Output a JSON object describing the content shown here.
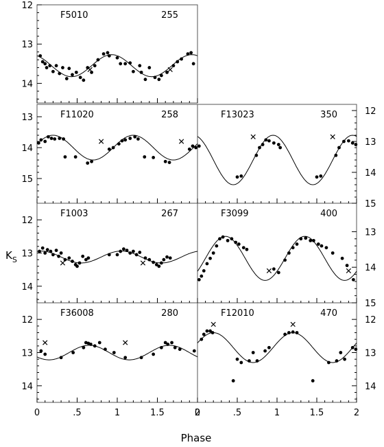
{
  "chart_data": {
    "type": "scatter",
    "xlabel": "Phase",
    "ylabel": "K",
    "ylabel_sub": "S",
    "panels": [
      {
        "star": "F5010",
        "period": "255",
        "xlim": [
          0,
          2
        ],
        "ylim": [
          14.5,
          12.0
        ],
        "yticks": [
          12,
          13,
          14
        ],
        "curve": {
          "mean": 13.55,
          "amp": 0.28,
          "peak_phase": 0.93
        },
        "points": [
          [
            0.04,
            13.3
          ],
          [
            0.07,
            13.45
          ],
          [
            0.1,
            13.5
          ],
          [
            0.12,
            13.6
          ],
          [
            0.16,
            13.55
          ],
          [
            0.2,
            13.7
          ],
          [
            0.24,
            13.55
          ],
          [
            0.28,
            13.75
          ],
          [
            0.32,
            13.6
          ],
          [
            0.37,
            13.88
          ],
          [
            0.4,
            13.62
          ],
          [
            0.44,
            13.78
          ],
          [
            0.49,
            13.72
          ],
          [
            0.54,
            13.85
          ],
          [
            0.58,
            13.92
          ],
          [
            0.63,
            13.6
          ],
          [
            0.68,
            13.72
          ],
          [
            0.72,
            13.55
          ],
          [
            0.76,
            13.4
          ],
          [
            0.83,
            13.25
          ],
          [
            0.88,
            13.22
          ],
          [
            0.9,
            13.3
          ],
          [
            1.0,
            13.35
          ],
          [
            1.04,
            13.5
          ],
          [
            1.1,
            13.5
          ],
          [
            1.16,
            13.48
          ],
          [
            1.2,
            13.7
          ],
          [
            1.28,
            13.55
          ],
          [
            1.3,
            13.72
          ],
          [
            1.35,
            13.9
          ],
          [
            1.4,
            13.6
          ],
          [
            1.47,
            13.85
          ],
          [
            1.52,
            13.9
          ],
          [
            1.55,
            13.8
          ],
          [
            1.62,
            13.72
          ],
          [
            1.7,
            13.55
          ],
          [
            1.75,
            13.45
          ],
          [
            1.8,
            13.38
          ],
          [
            1.88,
            13.25
          ],
          [
            1.92,
            13.22
          ],
          [
            1.95,
            13.5
          ]
        ],
        "crosses": [
          [
            0.66,
            13.65
          ],
          [
            1.66,
            13.65
          ]
        ]
      },
      {
        "star": "F11020",
        "period": "258",
        "xlim": [
          0,
          2
        ],
        "ylim": [
          15.8,
          12.6
        ],
        "yticks": [
          13,
          14,
          15
        ],
        "curve": {
          "mean": 14.0,
          "amp": 0.4,
          "peak_phase": 0.2
        },
        "points": [
          [
            0.02,
            13.85
          ],
          [
            0.05,
            13.75
          ],
          [
            0.1,
            13.8
          ],
          [
            0.14,
            13.65
          ],
          [
            0.18,
            13.7
          ],
          [
            0.22,
            13.72
          ],
          [
            0.28,
            13.7
          ],
          [
            0.33,
            13.72
          ],
          [
            0.35,
            14.3
          ],
          [
            0.48,
            14.3
          ],
          [
            0.63,
            14.5
          ],
          [
            0.68,
            14.45
          ],
          [
            0.9,
            14.05
          ],
          [
            0.95,
            14.0
          ],
          [
            1.02,
            13.88
          ],
          [
            1.06,
            13.78
          ],
          [
            1.1,
            13.75
          ],
          [
            1.16,
            13.7
          ],
          [
            1.22,
            13.65
          ],
          [
            1.26,
            13.72
          ],
          [
            1.34,
            14.3
          ],
          [
            1.45,
            14.32
          ],
          [
            1.6,
            14.45
          ],
          [
            1.65,
            14.48
          ],
          [
            1.9,
            14.05
          ],
          [
            1.94,
            13.95
          ],
          [
            1.98,
            14.0
          ]
        ],
        "crosses": [
          [
            0.8,
            13.8
          ],
          [
            1.8,
            13.8
          ]
        ]
      },
      {
        "star": "F1003",
        "period": "267",
        "xlim": [
          0,
          2
        ],
        "ylim": [
          14.5,
          11.5
        ],
        "yticks": [
          12,
          13,
          14
        ],
        "curve": {
          "mean": 13.12,
          "amp": 0.18,
          "peak_phase": 0.05
        },
        "points": [
          [
            0.03,
            12.95
          ],
          [
            0.07,
            12.85
          ],
          [
            0.1,
            13.0
          ],
          [
            0.13,
            12.9
          ],
          [
            0.17,
            12.95
          ],
          [
            0.2,
            13.05
          ],
          [
            0.24,
            12.92
          ],
          [
            0.27,
            13.1
          ],
          [
            0.3,
            13.0
          ],
          [
            0.35,
            13.2
          ],
          [
            0.4,
            13.15
          ],
          [
            0.44,
            13.25
          ],
          [
            0.48,
            13.35
          ],
          [
            0.5,
            13.4
          ],
          [
            0.53,
            13.3
          ],
          [
            0.57,
            13.1
          ],
          [
            0.61,
            13.2
          ],
          [
            0.64,
            13.15
          ],
          [
            0.9,
            13.05
          ],
          [
            1.0,
            13.05
          ],
          [
            1.04,
            12.95
          ],
          [
            1.08,
            12.88
          ],
          [
            1.12,
            12.92
          ],
          [
            1.16,
            13.0
          ],
          [
            1.2,
            12.95
          ],
          [
            1.24,
            13.05
          ],
          [
            1.28,
            12.98
          ],
          [
            1.35,
            13.15
          ],
          [
            1.4,
            13.2
          ],
          [
            1.45,
            13.28
          ],
          [
            1.49,
            13.35
          ],
          [
            1.52,
            13.4
          ],
          [
            1.55,
            13.3
          ],
          [
            1.58,
            13.2
          ],
          [
            1.62,
            13.12
          ],
          [
            1.66,
            13.15
          ]
        ],
        "crosses": [
          [
            0.32,
            13.3
          ],
          [
            1.32,
            13.3
          ]
        ]
      },
      {
        "star": "F36008",
        "period": "280",
        "xlim": [
          0,
          2
        ],
        "ylim": [
          14.5,
          11.5
        ],
        "yticks": [
          12,
          13,
          14
        ],
        "curve": {
          "mean": 13.0,
          "amp": 0.22,
          "peak_phase": 0.65
        },
        "points": [
          [
            0.05,
            12.95
          ],
          [
            0.1,
            13.05
          ],
          [
            0.3,
            13.15
          ],
          [
            0.45,
            13.0
          ],
          [
            0.58,
            12.85
          ],
          [
            0.61,
            12.7
          ],
          [
            0.64,
            12.72
          ],
          [
            0.67,
            12.75
          ],
          [
            0.72,
            12.8
          ],
          [
            0.78,
            12.7
          ],
          [
            0.85,
            12.9
          ],
          [
            0.96,
            13.0
          ],
          [
            1.1,
            13.15
          ],
          [
            1.3,
            13.15
          ],
          [
            1.45,
            13.05
          ],
          [
            1.55,
            12.85
          ],
          [
            1.6,
            12.7
          ],
          [
            1.63,
            12.75
          ],
          [
            1.68,
            12.7
          ],
          [
            1.72,
            12.85
          ],
          [
            1.78,
            12.9
          ],
          [
            1.96,
            12.95
          ]
        ],
        "crosses": [
          [
            0.1,
            12.7
          ],
          [
            1.1,
            12.7
          ]
        ]
      },
      {
        "star": "F13023",
        "period": "350",
        "xlim": [
          0,
          2
        ],
        "ylim": [
          15.0,
          11.8
        ],
        "yticks": [
          12,
          13,
          14,
          15
        ],
        "curve": {
          "mean": 13.6,
          "amp": 0.8,
          "peak_phase": 0.95
        },
        "points": [
          [
            0.02,
            13.15
          ],
          [
            0.5,
            14.15
          ],
          [
            0.55,
            14.12
          ],
          [
            0.74,
            13.45
          ],
          [
            0.78,
            13.2
          ],
          [
            0.82,
            13.1
          ],
          [
            0.86,
            12.95
          ],
          [
            0.9,
            12.98
          ],
          [
            0.96,
            13.05
          ],
          [
            1.02,
            13.1
          ],
          [
            1.04,
            13.2
          ],
          [
            1.5,
            14.15
          ],
          [
            1.55,
            14.12
          ],
          [
            1.74,
            13.45
          ],
          [
            1.78,
            13.2
          ],
          [
            1.84,
            13.0
          ],
          [
            1.9,
            12.98
          ],
          [
            1.95,
            13.05
          ],
          [
            1.99,
            13.1
          ]
        ],
        "crosses": [
          [
            0.7,
            12.85
          ],
          [
            1.7,
            12.85
          ]
        ]
      },
      {
        "star": "F3099",
        "period": "400",
        "xlim": [
          0,
          2
        ],
        "ylim": [
          15.0,
          12.2
        ],
        "yticks": [
          13,
          14,
          15
        ],
        "curve": {
          "mean": 13.75,
          "amp": 0.62,
          "peak_phase": 0.35
        },
        "points": [
          [
            0.02,
            14.35
          ],
          [
            0.05,
            14.25
          ],
          [
            0.08,
            14.1
          ],
          [
            0.12,
            13.9
          ],
          [
            0.16,
            13.75
          ],
          [
            0.2,
            13.6
          ],
          [
            0.24,
            13.4
          ],
          [
            0.28,
            13.2
          ],
          [
            0.32,
            13.15
          ],
          [
            0.38,
            13.25
          ],
          [
            0.43,
            13.2
          ],
          [
            0.48,
            13.3
          ],
          [
            0.52,
            13.35
          ],
          [
            0.58,
            13.45
          ],
          [
            0.62,
            13.5
          ],
          [
            0.96,
            14.05
          ],
          [
            1.02,
            14.15
          ],
          [
            1.1,
            13.8
          ],
          [
            1.15,
            13.6
          ],
          [
            1.2,
            13.45
          ],
          [
            1.25,
            13.35
          ],
          [
            1.3,
            13.2
          ],
          [
            1.36,
            13.18
          ],
          [
            1.42,
            13.25
          ],
          [
            1.46,
            13.25
          ],
          [
            1.52,
            13.35
          ],
          [
            1.56,
            13.4
          ],
          [
            1.62,
            13.45
          ],
          [
            1.7,
            13.6
          ],
          [
            1.82,
            13.75
          ],
          [
            1.88,
            13.95
          ],
          [
            1.96,
            14.35
          ]
        ],
        "crosses": [
          [
            0.9,
            14.1
          ],
          [
            1.9,
            14.1
          ]
        ]
      },
      {
        "star": "F12010",
        "period": "470",
        "xlim": [
          0,
          2
        ],
        "ylim": [
          14.5,
          11.5
        ],
        "yticks": [
          12,
          13,
          14
        ],
        "curve": {
          "mean": 12.85,
          "amp": 0.45,
          "peak_phase": 0.2
        },
        "points": [
          [
            0.05,
            12.6
          ],
          [
            0.08,
            12.45
          ],
          [
            0.12,
            12.35
          ],
          [
            0.16,
            12.35
          ],
          [
            0.19,
            12.4
          ],
          [
            0.45,
            13.85
          ],
          [
            0.5,
            13.2
          ],
          [
            0.55,
            13.3
          ],
          [
            0.65,
            13.25
          ],
          [
            0.7,
            13.0
          ],
          [
            0.75,
            13.25
          ],
          [
            0.85,
            12.95
          ],
          [
            0.9,
            12.85
          ],
          [
            1.1,
            12.45
          ],
          [
            1.15,
            12.4
          ],
          [
            1.2,
            12.38
          ],
          [
            1.25,
            12.4
          ],
          [
            1.45,
            13.85
          ],
          [
            1.65,
            13.3
          ],
          [
            1.75,
            13.25
          ],
          [
            1.8,
            13.0
          ],
          [
            1.85,
            13.2
          ],
          [
            1.95,
            12.85
          ],
          [
            1.99,
            12.9
          ]
        ],
        "crosses": [
          [
            0.2,
            12.15
          ],
          [
            1.2,
            12.15
          ]
        ]
      }
    ],
    "xticks": [
      0,
      0.5,
      1,
      1.5,
      2
    ],
    "xtick_labels": [
      "0",
      ".5",
      "1",
      "1.5",
      "2"
    ]
  }
}
